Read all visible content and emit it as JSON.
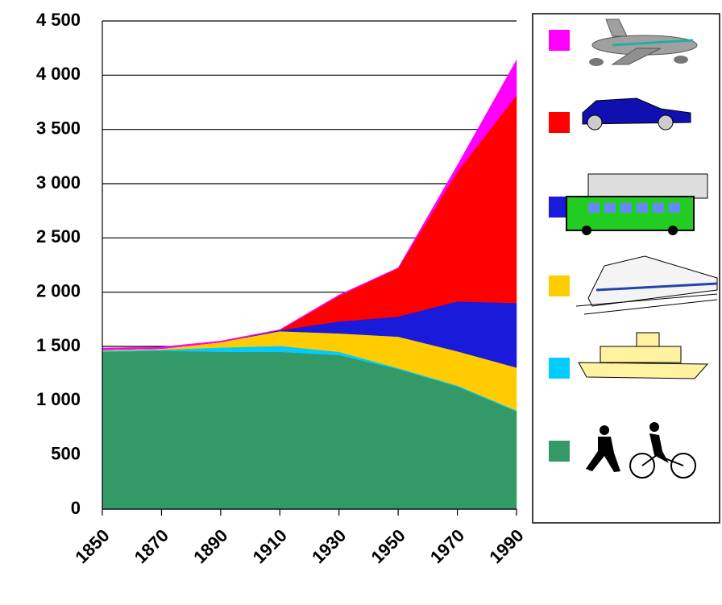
{
  "chart_data": {
    "type": "stacked_area",
    "x": [
      1850,
      1870,
      1890,
      1910,
      1930,
      1950,
      1970,
      1990
    ],
    "xlim": [
      1850,
      1990
    ],
    "xticks": [
      1850,
      1870,
      1890,
      1910,
      1930,
      1950,
      1970,
      1990
    ],
    "ylim": [
      0,
      4500
    ],
    "yticks": [
      0,
      500,
      {
        "value": 1000,
        "label": "1 000"
      },
      {
        "value": 1500,
        "label": "1 500"
      },
      {
        "value": 2000,
        "label": "2 000"
      },
      {
        "value": 2500,
        "label": "2 500"
      },
      {
        "value": 3000,
        "label": "3 000"
      },
      {
        "value": 3500,
        "label": "3 500"
      },
      {
        "value": 4000,
        "label": "4 000"
      },
      {
        "value": 4500,
        "label": "4 500"
      }
    ],
    "grid": true,
    "legend": "right",
    "series": [
      {
        "color": "#339966",
        "values": [
          1450,
          1460,
          1450,
          1450,
          1420,
          1290,
          1130,
          900
        ]
      },
      {
        "color": "#00ccff",
        "values": [
          10,
          10,
          40,
          55,
          30,
          10,
          10,
          10
        ]
      },
      {
        "color": "#ffcc00",
        "values": [
          10,
          10,
          50,
          135,
          170,
          290,
          315,
          395
        ]
      },
      {
        "color": "#1a1adb",
        "values": [
          0,
          0,
          0,
          10,
          110,
          185,
          460,
          595
        ]
      },
      {
        "color": "#ff0000",
        "values": [
          0,
          0,
          0,
          0,
          235,
          445,
          1195,
          1915
        ]
      },
      {
        "color": "#ff00ff",
        "values": [
          15,
          15,
          10,
          5,
          10,
          5,
          60,
          325
        ]
      }
    ]
  }
}
